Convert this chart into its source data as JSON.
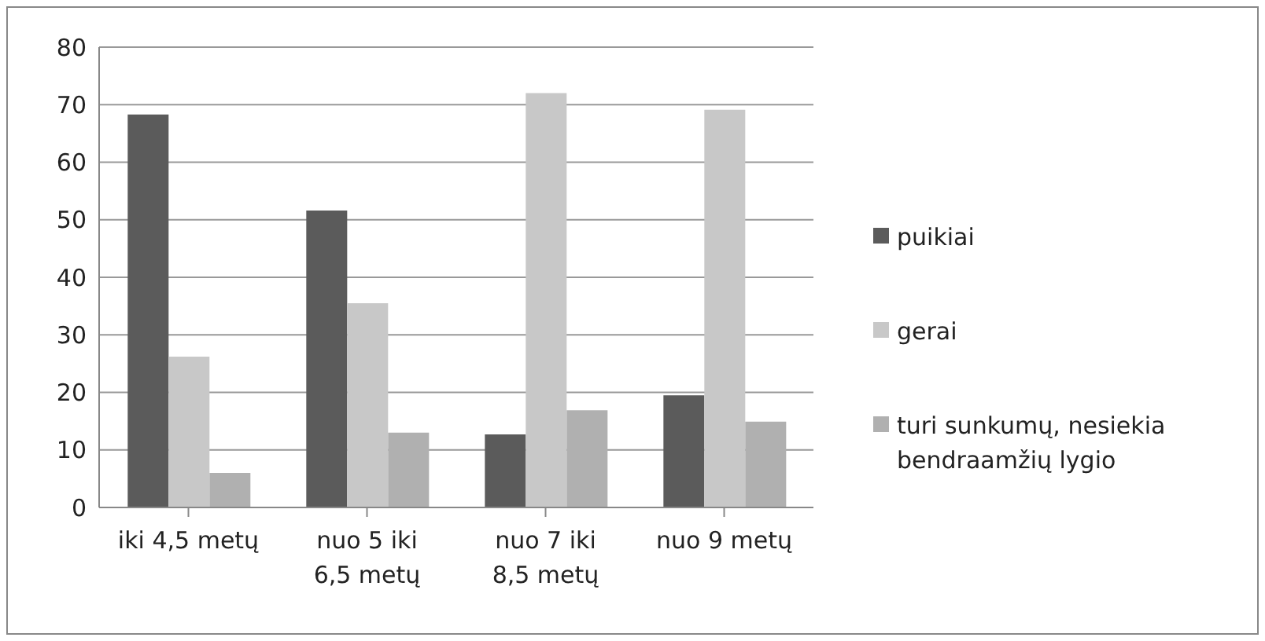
{
  "chart_data": {
    "type": "bar",
    "categories": [
      "iki 4,5 metų",
      "nuo 5 iki 6,5 metų",
      "nuo 7 iki 8,5 metų",
      "nuo 9 metų"
    ],
    "series": [
      {
        "name": "puikiai",
        "color": "#5b5b5b",
        "values": [
          68.3,
          51.6,
          12.7,
          19.5
        ]
      },
      {
        "name": "gerai",
        "color": "#c8c8c8",
        "values": [
          26.2,
          35.5,
          72.0,
          69.1
        ]
      },
      {
        "name": "turi sunkumų, nesiekia bendraamžių lygio",
        "color": "#b0b0b0",
        "values": [
          6.0,
          13.0,
          16.9,
          14.9
        ]
      }
    ],
    "ylim": [
      0,
      80
    ],
    "yticks": [
      0,
      10,
      20,
      30,
      40,
      50,
      60,
      70,
      80
    ],
    "grid": "y",
    "legend": "right"
  }
}
